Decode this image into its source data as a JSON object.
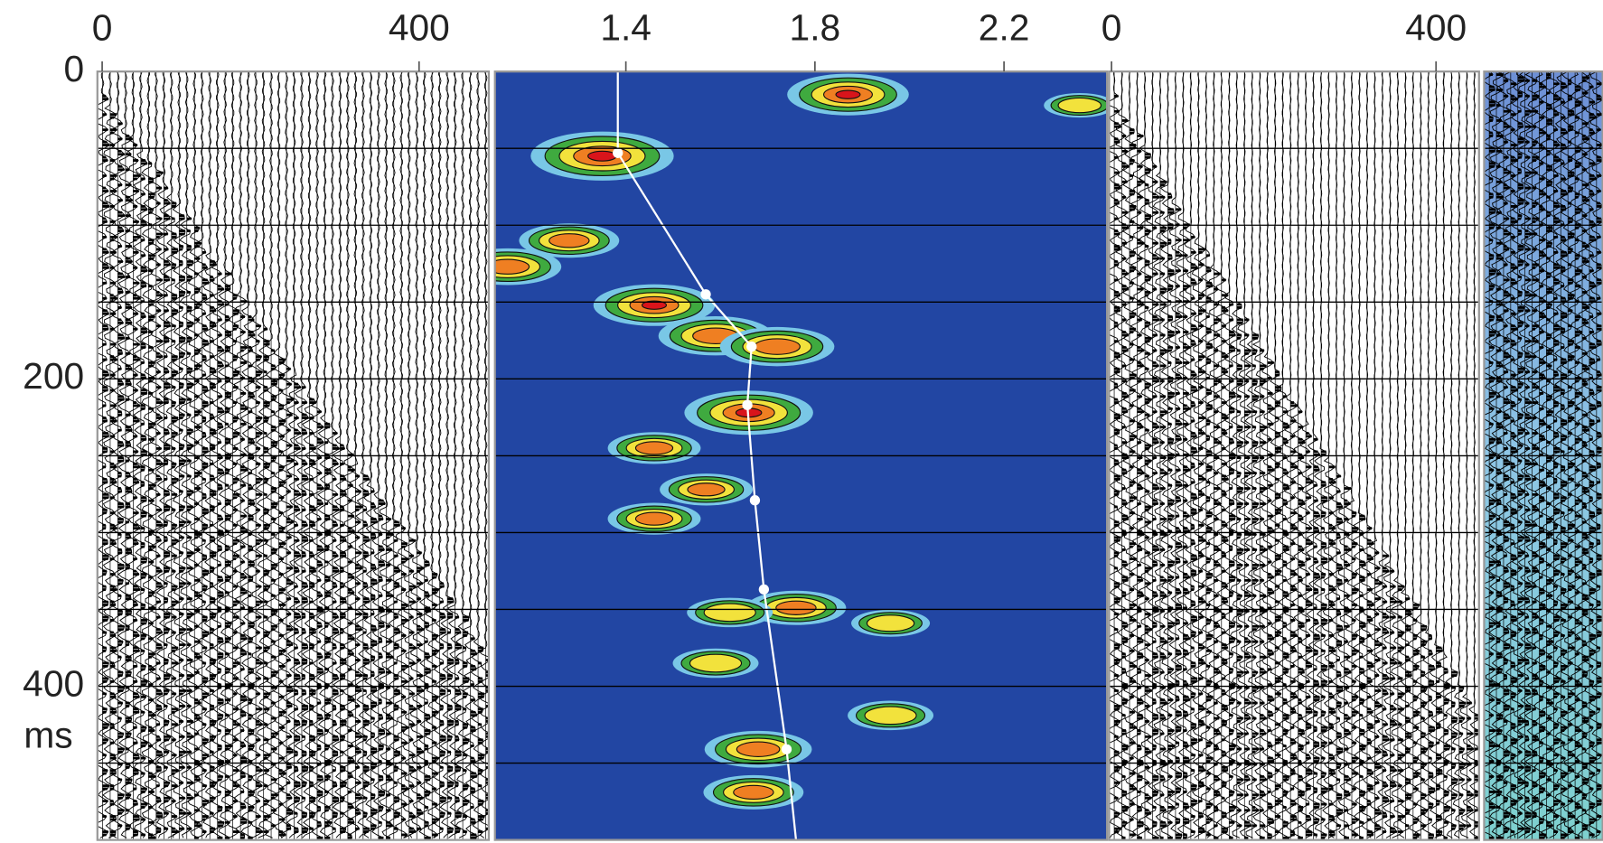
{
  "chart_data": [
    {
      "type": "wiggle",
      "xlim": [
        -6,
        488
      ],
      "xticks": [
        0,
        400
      ],
      "ylim": [
        0,
        500
      ],
      "yticks": [
        0,
        200,
        400
      ],
      "y_label": "ms",
      "y_grid": [
        50,
        100,
        150,
        250,
        300,
        350,
        450
      ],
      "grid": true
    },
    {
      "type": "semblance",
      "xlim": [
        1.123,
        2.418
      ],
      "xticks": [
        1.4,
        1.8,
        2.2
      ],
      "colors": [
        "#79c7e6",
        "#3faa3f",
        "#f2e23c",
        "#ef7f22",
        "#d9141b"
      ],
      "background": "#2246a3",
      "peaks": {
        "x": [
          1.87,
          1.35,
          1.28,
          1.15,
          1.46,
          1.59,
          1.72,
          1.66,
          1.46,
          1.57,
          1.46,
          1.76,
          1.62,
          1.96,
          1.59,
          1.68,
          1.96,
          1.67,
          2.36
        ],
        "y": [
          15,
          55,
          110,
          127,
          152,
          172,
          179,
          222,
          245,
          272,
          291,
          349,
          352,
          359,
          385,
          441,
          419,
          469,
          22
        ],
        "values": [
          0.85,
          1.0,
          0.7,
          0.75,
          0.85,
          0.8,
          0.8,
          0.9,
          0.65,
          0.65,
          0.65,
          0.7,
          0.6,
          0.55,
          0.6,
          0.75,
          0.6,
          0.7,
          0.5
        ]
      },
      "line": {
        "x": [
          1.383,
          1.383,
          1.569,
          1.666,
          1.657,
          1.673,
          1.692,
          1.74,
          1.76
        ],
        "y": [
          0,
          53,
          145,
          179,
          217,
          279,
          337,
          441,
          500
        ]
      },
      "picks": {
        "x": [
          1.383,
          1.569,
          1.666,
          1.657,
          1.673,
          1.692,
          1.74
        ],
        "y": [
          53,
          145,
          179,
          217,
          279,
          337,
          441
        ]
      }
    },
    {
      "type": "wiggle",
      "xlim": [
        -3,
        453
      ],
      "xticks": [
        0,
        400
      ]
    },
    {
      "type": "wiggle-flat"
    }
  ]
}
